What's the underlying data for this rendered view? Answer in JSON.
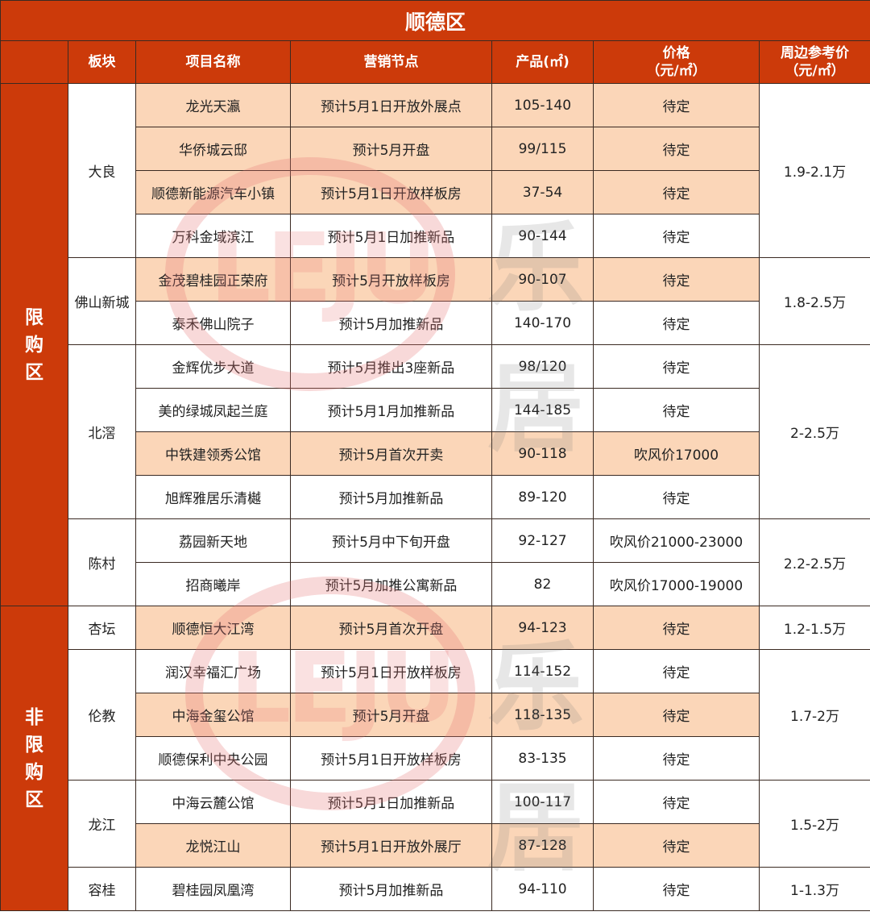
{
  "title": "顺德区",
  "headers": {
    "zone": "",
    "block": "板块",
    "name": "项目名称",
    "node": "营销节点",
    "size": "产品(㎡)",
    "price": "价格\n（元/㎡）",
    "ref": "周边参考价\n（元/㎡）"
  },
  "watermark": "LEJU 乐居",
  "colors": {
    "header_bg": "#cc3a0a",
    "highlight_bg": "#fbd6b8"
  },
  "zones": [
    {
      "label": "限购区",
      "blocks": [
        {
          "name": "大良",
          "ref_price": "1.9-2.1万",
          "projects": [
            {
              "name": "龙光天瀛",
              "node": "预计5月1日开放外展点",
              "size": "105-140",
              "price": "待定",
              "highlight": true
            },
            {
              "name": "华侨城云邸",
              "node": "预计5月开盘",
              "size": "99/115",
              "price": "待定",
              "highlight": true
            },
            {
              "name": "顺德新能源汽车小镇",
              "node": "预计5月1日开放样板房",
              "size": "37-54",
              "price": "待定",
              "highlight": true
            },
            {
              "name": "万科金域滨江",
              "node": "预计5月1日加推新品",
              "size": "90-144",
              "price": "待定",
              "highlight": false
            }
          ]
        },
        {
          "name": "佛山新城",
          "ref_price": "1.8-2.5万",
          "projects": [
            {
              "name": "金茂碧桂园正荣府",
              "node": "预计5月开放样板房",
              "size": "90-107",
              "price": "待定",
              "highlight": true
            },
            {
              "name": "泰禾佛山院子",
              "node": "预计5月加推新品",
              "size": "140-170",
              "price": "待定",
              "highlight": false
            }
          ]
        },
        {
          "name": "北滘",
          "ref_price": "2-2.5万",
          "projects": [
            {
              "name": "金辉优步大道",
              "node": "预计5月推出3座新品",
              "size": "98/120",
              "price": "待定",
              "highlight": false
            },
            {
              "name": "美的绿城凤起兰庭",
              "node": "预计5月1月加推新品",
              "size": "144-185",
              "price": "待定",
              "highlight": false
            },
            {
              "name": "中铁建领秀公馆",
              "node": "预计5月首次开卖",
              "size": "90-118",
              "price": "吹风价17000",
              "highlight": true
            },
            {
              "name": "旭辉雅居乐清樾",
              "node": "预计5月加推新品",
              "size": "89-120",
              "price": "待定",
              "highlight": false
            }
          ]
        },
        {
          "name": "陈村",
          "ref_price": "2.2-2.5万",
          "projects": [
            {
              "name": "荔园新天地",
              "node": "预计5月中下旬开盘",
              "size": "92-127",
              "price": "吹风价21000-23000",
              "highlight": false
            },
            {
              "name": "招商曦岸",
              "node": "预计5月加推公寓新品",
              "size": "82",
              "price": "吹风价17000-19000",
              "highlight": false
            }
          ]
        }
      ]
    },
    {
      "label": "非限购区",
      "blocks": [
        {
          "name": "杏坛",
          "ref_price": "1.2-1.5万",
          "projects": [
            {
              "name": "顺德恒大江湾",
              "node": "预计5月首次开盘",
              "size": "94-123",
              "price": "待定",
              "highlight": true
            }
          ]
        },
        {
          "name": "伦教",
          "ref_price": "1.7-2万",
          "projects": [
            {
              "name": "润汉幸福汇广场",
              "node": "预计5月1日开放样板房",
              "size": "114-152",
              "price": "待定",
              "highlight": false
            },
            {
              "name": "中海金玺公馆",
              "node": "预计5月开盘",
              "size": "118-135",
              "price": "待定",
              "highlight": true
            },
            {
              "name": "顺德保利中央公园",
              "node": "预计5月1日开放样板房",
              "size": "83-135",
              "price": "待定",
              "highlight": false
            }
          ]
        },
        {
          "name": "龙江",
          "ref_price": "1.5-2万",
          "projects": [
            {
              "name": "中海云麓公馆",
              "node": "预计5月1日加推新品",
              "size": "100-117",
              "price": "待定",
              "highlight": false
            },
            {
              "name": "龙悦江山",
              "node": "预计5月1日开放外展厅",
              "size": "87-128",
              "price": "待定",
              "highlight": true
            }
          ]
        },
        {
          "name": "容桂",
          "ref_price": "1-1.3万",
          "projects": [
            {
              "name": "碧桂园凤凰湾",
              "node": "预计5月加推新品",
              "size": "94-110",
              "price": "待定",
              "highlight": false
            }
          ]
        }
      ]
    }
  ]
}
